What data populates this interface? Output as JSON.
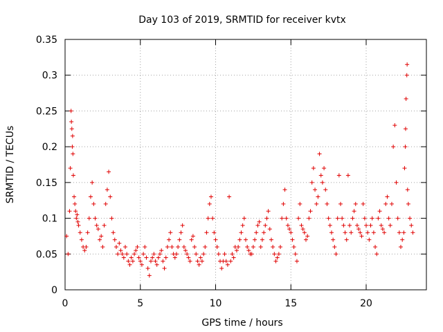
{
  "chart_data": {
    "type": "scatter",
    "title": "Day 103 of 2019, SRMTID for receiver kvtx",
    "xlabel": "GPS time / hours",
    "ylabel": "SRMTID / TECUs",
    "xlim": [
      0,
      24
    ],
    "ylim": [
      0,
      0.35
    ],
    "xticks": [
      0,
      5,
      10,
      15,
      20
    ],
    "xtick_labels": [
      "0",
      "5",
      "10",
      "15",
      "20"
    ],
    "yticks": [
      0,
      0.05,
      0.1,
      0.15,
      0.2,
      0.25,
      0.3,
      0.35
    ],
    "ytick_labels": [
      "0",
      "0.05",
      "0.1",
      "0.15",
      "0.2",
      "0.25",
      "0.3",
      "0.35"
    ],
    "grid": true,
    "marker": "+",
    "color": "#e00000",
    "series": [
      {
        "name": "SRMTID",
        "points": [
          [
            0.1,
            0.075
          ],
          [
            0.2,
            0.05
          ],
          [
            0.3,
            0.11
          ],
          [
            0.35,
            0.17
          ],
          [
            0.4,
            0.25
          ],
          [
            0.42,
            0.235
          ],
          [
            0.45,
            0.225
          ],
          [
            0.48,
            0.2
          ],
          [
            0.5,
            0.215
          ],
          [
            0.52,
            0.19
          ],
          [
            0.55,
            0.16
          ],
          [
            0.6,
            0.13
          ],
          [
            0.65,
            0.12
          ],
          [
            0.7,
            0.11
          ],
          [
            0.75,
            0.1
          ],
          [
            0.8,
            0.105
          ],
          [
            0.85,
            0.095
          ],
          [
            0.9,
            0.09
          ],
          [
            1.0,
            0.08
          ],
          [
            1.1,
            0.07
          ],
          [
            1.2,
            0.06
          ],
          [
            1.3,
            0.055
          ],
          [
            1.4,
            0.06
          ],
          [
            1.5,
            0.08
          ],
          [
            1.6,
            0.1
          ],
          [
            1.7,
            0.13
          ],
          [
            1.8,
            0.15
          ],
          [
            1.9,
            0.12
          ],
          [
            2.0,
            0.1
          ],
          [
            2.1,
            0.09
          ],
          [
            2.2,
            0.085
          ],
          [
            2.3,
            0.07
          ],
          [
            2.4,
            0.075
          ],
          [
            2.5,
            0.06
          ],
          [
            2.6,
            0.09
          ],
          [
            2.7,
            0.12
          ],
          [
            2.8,
            0.14
          ],
          [
            2.9,
            0.165
          ],
          [
            3.0,
            0.13
          ],
          [
            3.1,
            0.1
          ],
          [
            3.2,
            0.08
          ],
          [
            3.3,
            0.07
          ],
          [
            3.4,
            0.06
          ],
          [
            3.5,
            0.05
          ],
          [
            3.6,
            0.065
          ],
          [
            3.7,
            0.055
          ],
          [
            3.8,
            0.05
          ],
          [
            3.9,
            0.045
          ],
          [
            4.0,
            0.06
          ],
          [
            4.1,
            0.05
          ],
          [
            4.2,
            0.04
          ],
          [
            4.3,
            0.035
          ],
          [
            4.4,
            0.045
          ],
          [
            4.5,
            0.04
          ],
          [
            4.6,
            0.05
          ],
          [
            4.7,
            0.055
          ],
          [
            4.8,
            0.06
          ],
          [
            4.9,
            0.045
          ],
          [
            5.0,
            0.04
          ],
          [
            5.1,
            0.035
          ],
          [
            5.2,
            0.05
          ],
          [
            5.3,
            0.06
          ],
          [
            5.4,
            0.045
          ],
          [
            5.5,
            0.03
          ],
          [
            5.6,
            0.02
          ],
          [
            5.7,
            0.04
          ],
          [
            5.8,
            0.045
          ],
          [
            5.9,
            0.05
          ],
          [
            6.0,
            0.04
          ],
          [
            6.1,
            0.035
          ],
          [
            6.2,
            0.045
          ],
          [
            6.3,
            0.05
          ],
          [
            6.4,
            0.055
          ],
          [
            6.5,
            0.04
          ],
          [
            6.6,
            0.03
          ],
          [
            6.7,
            0.045
          ],
          [
            6.8,
            0.06
          ],
          [
            6.9,
            0.07
          ],
          [
            7.0,
            0.08
          ],
          [
            7.1,
            0.06
          ],
          [
            7.2,
            0.05
          ],
          [
            7.3,
            0.045
          ],
          [
            7.4,
            0.05
          ],
          [
            7.5,
            0.06
          ],
          [
            7.6,
            0.07
          ],
          [
            7.7,
            0.08
          ],
          [
            7.8,
            0.09
          ],
          [
            7.9,
            0.06
          ],
          [
            8.0,
            0.055
          ],
          [
            8.1,
            0.05
          ],
          [
            8.2,
            0.045
          ],
          [
            8.3,
            0.04
          ],
          [
            8.4,
            0.07
          ],
          [
            8.5,
            0.075
          ],
          [
            8.6,
            0.06
          ],
          [
            8.7,
            0.05
          ],
          [
            8.8,
            0.04
          ],
          [
            8.9,
            0.035
          ],
          [
            9.0,
            0.045
          ],
          [
            9.1,
            0.04
          ],
          [
            9.2,
            0.05
          ],
          [
            9.3,
            0.06
          ],
          [
            9.4,
            0.08
          ],
          [
            9.5,
            0.1
          ],
          [
            9.6,
            0.12
          ],
          [
            9.7,
            0.13
          ],
          [
            9.8,
            0.1
          ],
          [
            9.9,
            0.08
          ],
          [
            10.0,
            0.07
          ],
          [
            10.1,
            0.06
          ],
          [
            10.2,
            0.05
          ],
          [
            10.3,
            0.04
          ],
          [
            10.4,
            0.03
          ],
          [
            10.5,
            0.04
          ],
          [
            10.6,
            0.05
          ],
          [
            10.7,
            0.04
          ],
          [
            10.8,
            0.035
          ],
          [
            10.9,
            0.13
          ],
          [
            11.0,
            0.04
          ],
          [
            11.1,
            0.05
          ],
          [
            11.2,
            0.045
          ],
          [
            11.3,
            0.06
          ],
          [
            11.4,
            0.055
          ],
          [
            11.5,
            0.06
          ],
          [
            11.6,
            0.07
          ],
          [
            11.7,
            0.08
          ],
          [
            11.8,
            0.09
          ],
          [
            11.9,
            0.1
          ],
          [
            12.0,
            0.07
          ],
          [
            12.1,
            0.06
          ],
          [
            12.2,
            0.055
          ],
          [
            12.3,
            0.05
          ],
          [
            12.4,
            0.05
          ],
          [
            12.5,
            0.06
          ],
          [
            12.6,
            0.07
          ],
          [
            12.7,
            0.08
          ],
          [
            12.8,
            0.09
          ],
          [
            12.9,
            0.095
          ],
          [
            13.0,
            0.06
          ],
          [
            13.1,
            0.07
          ],
          [
            13.2,
            0.08
          ],
          [
            13.3,
            0.09
          ],
          [
            13.4,
            0.1
          ],
          [
            13.5,
            0.11
          ],
          [
            13.6,
            0.085
          ],
          [
            13.7,
            0.07
          ],
          [
            13.8,
            0.06
          ],
          [
            13.9,
            0.05
          ],
          [
            14.0,
            0.04
          ],
          [
            14.1,
            0.045
          ],
          [
            14.2,
            0.05
          ],
          [
            14.3,
            0.06
          ],
          [
            14.4,
            0.1
          ],
          [
            14.5,
            0.12
          ],
          [
            14.6,
            0.14
          ],
          [
            14.7,
            0.1
          ],
          [
            14.8,
            0.09
          ],
          [
            14.9,
            0.085
          ],
          [
            15.0,
            0.08
          ],
          [
            15.1,
            0.07
          ],
          [
            15.2,
            0.06
          ],
          [
            15.3,
            0.05
          ],
          [
            15.4,
            0.04
          ],
          [
            15.5,
            0.1
          ],
          [
            15.6,
            0.12
          ],
          [
            15.7,
            0.09
          ],
          [
            15.8,
            0.085
          ],
          [
            15.9,
            0.08
          ],
          [
            16.0,
            0.07
          ],
          [
            16.1,
            0.075
          ],
          [
            16.2,
            0.1
          ],
          [
            16.3,
            0.11
          ],
          [
            16.4,
            0.15
          ],
          [
            16.5,
            0.17
          ],
          [
            16.6,
            0.14
          ],
          [
            16.7,
            0.12
          ],
          [
            16.8,
            0.13
          ],
          [
            16.9,
            0.19
          ],
          [
            17.0,
            0.16
          ],
          [
            17.1,
            0.15
          ],
          [
            17.2,
            0.17
          ],
          [
            17.3,
            0.14
          ],
          [
            17.4,
            0.12
          ],
          [
            17.5,
            0.1
          ],
          [
            17.6,
            0.09
          ],
          [
            17.7,
            0.08
          ],
          [
            17.8,
            0.07
          ],
          [
            17.9,
            0.06
          ],
          [
            18.0,
            0.05
          ],
          [
            18.1,
            0.1
          ],
          [
            18.2,
            0.16
          ],
          [
            18.3,
            0.12
          ],
          [
            18.4,
            0.1
          ],
          [
            18.5,
            0.09
          ],
          [
            18.6,
            0.08
          ],
          [
            18.7,
            0.07
          ],
          [
            18.8,
            0.16
          ],
          [
            18.9,
            0.09
          ],
          [
            19.0,
            0.08
          ],
          [
            19.1,
            0.1
          ],
          [
            19.2,
            0.11
          ],
          [
            19.3,
            0.12
          ],
          [
            19.4,
            0.09
          ],
          [
            19.5,
            0.085
          ],
          [
            19.6,
            0.08
          ],
          [
            19.7,
            0.075
          ],
          [
            19.8,
            0.12
          ],
          [
            19.9,
            0.1
          ],
          [
            20.0,
            0.09
          ],
          [
            20.1,
            0.08
          ],
          [
            20.2,
            0.07
          ],
          [
            20.3,
            0.09
          ],
          [
            20.4,
            0.1
          ],
          [
            20.5,
            0.08
          ],
          [
            20.6,
            0.06
          ],
          [
            20.7,
            0.05
          ],
          [
            20.8,
            0.1
          ],
          [
            20.9,
            0.11
          ],
          [
            21.0,
            0.09
          ],
          [
            21.1,
            0.085
          ],
          [
            21.2,
            0.08
          ],
          [
            21.3,
            0.12
          ],
          [
            21.4,
            0.13
          ],
          [
            21.5,
            0.1
          ],
          [
            21.6,
            0.09
          ],
          [
            21.7,
            0.12
          ],
          [
            21.8,
            0.2
          ],
          [
            21.9,
            0.23
          ],
          [
            22.0,
            0.15
          ],
          [
            22.1,
            0.1
          ],
          [
            22.2,
            0.08
          ],
          [
            22.3,
            0.06
          ],
          [
            22.4,
            0.07
          ],
          [
            22.5,
            0.08
          ],
          [
            22.55,
            0.17
          ],
          [
            22.6,
            0.2
          ],
          [
            22.62,
            0.225
          ],
          [
            22.65,
            0.267
          ],
          [
            22.7,
            0.3
          ],
          [
            22.72,
            0.315
          ],
          [
            22.75,
            0.14
          ],
          [
            22.8,
            0.12
          ],
          [
            22.9,
            0.1
          ],
          [
            23.0,
            0.09
          ],
          [
            23.1,
            0.08
          ]
        ]
      }
    ]
  }
}
